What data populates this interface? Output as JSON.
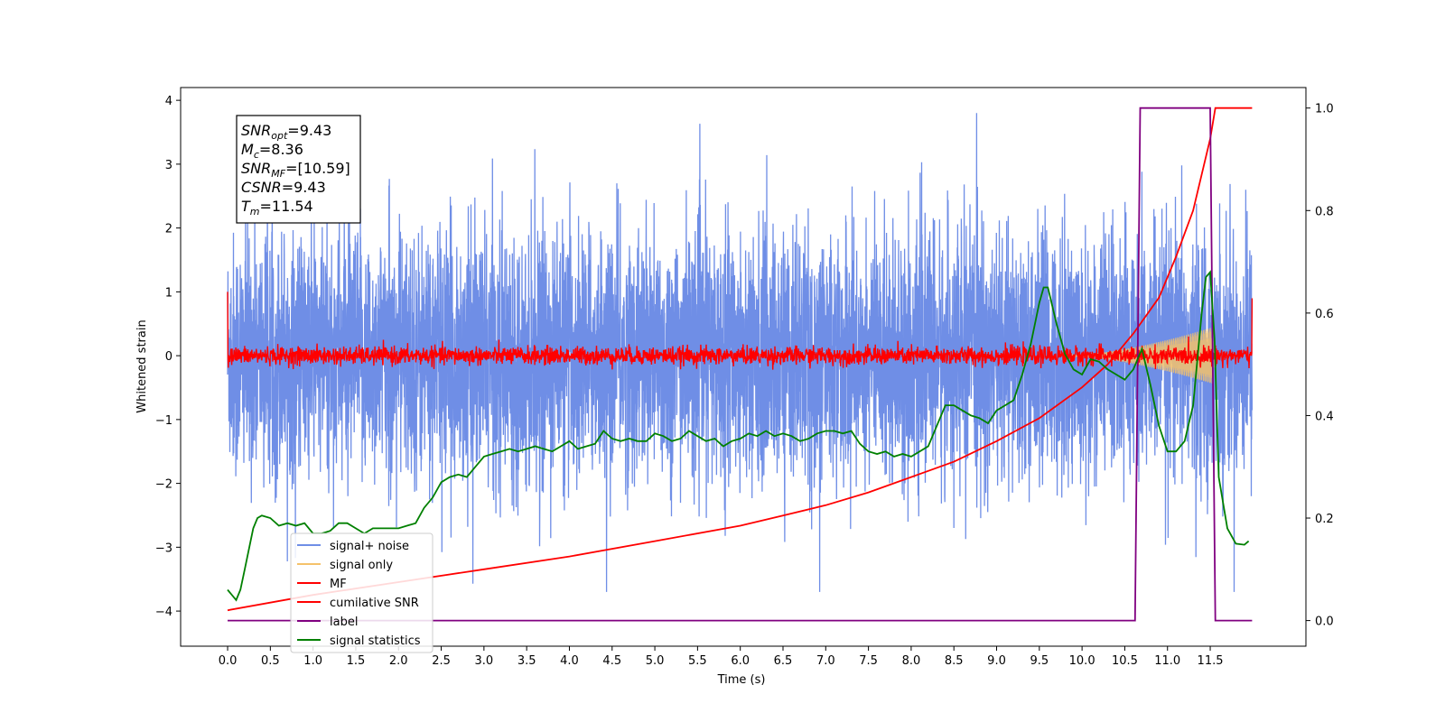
{
  "chart_data": {
    "type": "line",
    "xlabel": "Time (s)",
    "ylabel": "Whitened strain",
    "xlim": [
      -0.55,
      12.62
    ],
    "ylim": [
      -4.55,
      4.2
    ],
    "ylim_right": [
      -0.05,
      1.04
    ],
    "x_ticks": [
      "0.0",
      "0.5",
      "1.0",
      "1.5",
      "2.0",
      "2.5",
      "3.0",
      "3.5",
      "4.0",
      "4.5",
      "5.0",
      "5.5",
      "6.0",
      "6.5",
      "7.0",
      "7.5",
      "8.0",
      "8.5",
      "9.0",
      "9.5",
      "10.0",
      "10.5",
      "11.0",
      "11.5"
    ],
    "y_ticks": [
      "−4",
      "−3",
      "−2",
      "−1",
      "0",
      "1",
      "2",
      "3",
      "4"
    ],
    "y_right_ticks": [
      "0.0",
      "0.2",
      "0.4",
      "0.6",
      "0.8",
      "1.0"
    ],
    "annotation": {
      "lines": [
        {
          "var": "SNR",
          "sub": "opt",
          "value": "=9.43"
        },
        {
          "var": "M",
          "sub": "c",
          "value": "=8.36"
        },
        {
          "var": "SNR",
          "sub": "MF",
          "value": "=[10.59]"
        },
        {
          "var": "CSNR",
          "sub": "",
          "value": "=9.43"
        },
        {
          "var": "T",
          "sub": "m",
          "value": "=11.54"
        }
      ]
    },
    "legend": {
      "placement": "lower-left",
      "entries": [
        "signal+ noise",
        "signal only",
        "MF",
        "cumilative SNR",
        "label",
        "signal statistics"
      ]
    },
    "colors": {
      "signal_noise": "#6f8ee6",
      "signal_only": "#f5c26b",
      "mf": "#ff0000",
      "cumulative_snr": "#ff0000",
      "label": "#800080",
      "signal_statistics": "#008000"
    },
    "series": [
      {
        "name": "signal+ noise",
        "axis": "left",
        "color": "#6f8ee6",
        "noise_std": 0.95,
        "x_range": [
          0.0,
          11.99
        ]
      },
      {
        "name": "signal only",
        "axis": "left",
        "color": "#f5c26b",
        "chirp_start": 9.8,
        "chirp_end": 11.54,
        "peak_amplitude": 0.45
      },
      {
        "name": "MF",
        "axis": "left",
        "color": "#ff0000",
        "noise_std": 0.07,
        "x_range": [
          0.0,
          11.99
        ]
      },
      {
        "name": "cumilative SNR",
        "axis": "right",
        "color": "#ff0000",
        "x": [
          0.0,
          1.0,
          2.0,
          3.0,
          4.0,
          5.0,
          6.0,
          6.5,
          7.0,
          7.5,
          8.0,
          8.5,
          9.0,
          9.5,
          10.0,
          10.3,
          10.6,
          10.9,
          11.1,
          11.3,
          11.5,
          11.56,
          11.99
        ],
        "values": [
          0.02,
          0.05,
          0.075,
          0.1,
          0.125,
          0.155,
          0.185,
          0.205,
          0.225,
          0.25,
          0.28,
          0.31,
          0.35,
          0.395,
          0.455,
          0.5,
          0.56,
          0.63,
          0.71,
          0.8,
          0.94,
          1.0,
          1.0
        ]
      },
      {
        "name": "label",
        "axis": "right",
        "color": "#800080",
        "x": [
          0.0,
          10.62,
          10.68,
          11.5,
          11.56,
          11.99
        ],
        "values": [
          0.0,
          0.0,
          1.0,
          1.0,
          0.0,
          0.0
        ]
      },
      {
        "name": "signal statistics",
        "axis": "right",
        "color": "#008000",
        "x": [
          0.0,
          0.1,
          0.15,
          0.2,
          0.3,
          0.35,
          0.4,
          0.5,
          0.6,
          0.7,
          0.8,
          0.9,
          1.0,
          1.1,
          1.2,
          1.3,
          1.4,
          1.5,
          1.6,
          1.7,
          1.8,
          1.9,
          2.0,
          2.1,
          2.2,
          2.3,
          2.4,
          2.5,
          2.6,
          2.7,
          2.8,
          2.9,
          3.0,
          3.1,
          3.2,
          3.3,
          3.4,
          3.5,
          3.6,
          3.7,
          3.8,
          3.9,
          4.0,
          4.1,
          4.2,
          4.3,
          4.4,
          4.5,
          4.6,
          4.7,
          4.8,
          4.9,
          5.0,
          5.1,
          5.2,
          5.3,
          5.4,
          5.5,
          5.6,
          5.7,
          5.8,
          5.9,
          6.0,
          6.1,
          6.2,
          6.3,
          6.4,
          6.5,
          6.6,
          6.7,
          6.8,
          6.9,
          7.0,
          7.1,
          7.2,
          7.3,
          7.4,
          7.5,
          7.6,
          7.7,
          7.8,
          7.9,
          8.0,
          8.1,
          8.2,
          8.3,
          8.4,
          8.5,
          8.6,
          8.7,
          8.8,
          8.9,
          9.0,
          9.1,
          9.2,
          9.3,
          9.4,
          9.5,
          9.55,
          9.6,
          9.7,
          9.8,
          9.9,
          10.0,
          10.1,
          10.2,
          10.3,
          10.4,
          10.5,
          10.6,
          10.7,
          10.8,
          10.9,
          11.0,
          11.1,
          11.2,
          11.3,
          11.4,
          11.45,
          11.5,
          11.55,
          11.6,
          11.7,
          11.8,
          11.9,
          11.95
        ],
        "values": [
          0.06,
          0.04,
          0.06,
          0.1,
          0.18,
          0.2,
          0.205,
          0.2,
          0.185,
          0.19,
          0.185,
          0.19,
          0.17,
          0.17,
          0.175,
          0.19,
          0.19,
          0.18,
          0.17,
          0.18,
          0.18,
          0.18,
          0.18,
          0.185,
          0.19,
          0.22,
          0.24,
          0.27,
          0.28,
          0.285,
          0.28,
          0.3,
          0.32,
          0.325,
          0.33,
          0.335,
          0.33,
          0.335,
          0.34,
          0.335,
          0.33,
          0.34,
          0.35,
          0.335,
          0.34,
          0.345,
          0.37,
          0.355,
          0.35,
          0.355,
          0.35,
          0.35,
          0.365,
          0.36,
          0.35,
          0.355,
          0.37,
          0.36,
          0.35,
          0.355,
          0.34,
          0.35,
          0.355,
          0.365,
          0.36,
          0.37,
          0.36,
          0.365,
          0.36,
          0.35,
          0.355,
          0.365,
          0.37,
          0.37,
          0.365,
          0.37,
          0.345,
          0.33,
          0.325,
          0.33,
          0.32,
          0.325,
          0.32,
          0.33,
          0.34,
          0.38,
          0.42,
          0.42,
          0.41,
          0.4,
          0.395,
          0.385,
          0.41,
          0.42,
          0.43,
          0.48,
          0.54,
          0.62,
          0.65,
          0.65,
          0.58,
          0.52,
          0.49,
          0.48,
          0.51,
          0.505,
          0.49,
          0.48,
          0.47,
          0.49,
          0.53,
          0.46,
          0.38,
          0.33,
          0.33,
          0.35,
          0.42,
          0.6,
          0.67,
          0.68,
          0.55,
          0.28,
          0.18,
          0.15,
          0.148,
          0.155
        ]
      }
    ]
  }
}
